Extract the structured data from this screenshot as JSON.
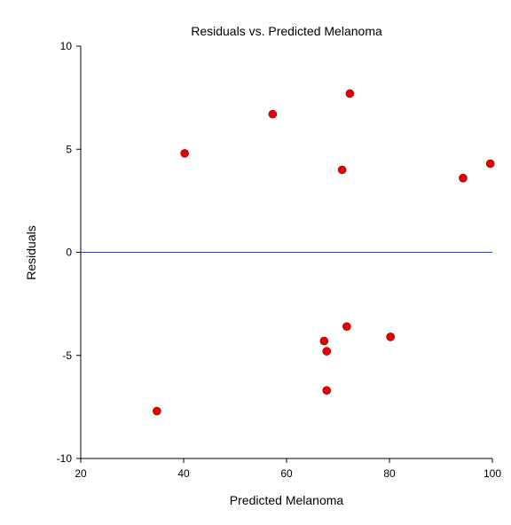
{
  "chart_data": {
    "type": "scatter",
    "title": "Residuals vs. Predicted Melanoma",
    "xlabel": "Predicted Melanoma",
    "ylabel": "Residuals",
    "xlim": [
      20,
      100
    ],
    "ylim": [
      -10,
      10
    ],
    "xticks": [
      20,
      40,
      60,
      80,
      100
    ],
    "yticks": [
      -10,
      -5,
      0,
      5,
      10
    ],
    "reference_line": {
      "y": 0,
      "color": "#3a3ac8"
    },
    "grid": false,
    "legend": "none",
    "point_color": "#e60000",
    "points": [
      {
        "x": 34.8,
        "y": -7.7
      },
      {
        "x": 40.2,
        "y": 4.8
      },
      {
        "x": 57.3,
        "y": 6.7
      },
      {
        "x": 67.3,
        "y": -4.3
      },
      {
        "x": 67.8,
        "y": -4.8
      },
      {
        "x": 67.8,
        "y": -6.7
      },
      {
        "x": 70.8,
        "y": 4.0
      },
      {
        "x": 71.7,
        "y": -3.6
      },
      {
        "x": 72.3,
        "y": 7.7
      },
      {
        "x": 80.2,
        "y": -4.1
      },
      {
        "x": 94.3,
        "y": 3.6
      },
      {
        "x": 99.6,
        "y": 4.3
      }
    ]
  }
}
